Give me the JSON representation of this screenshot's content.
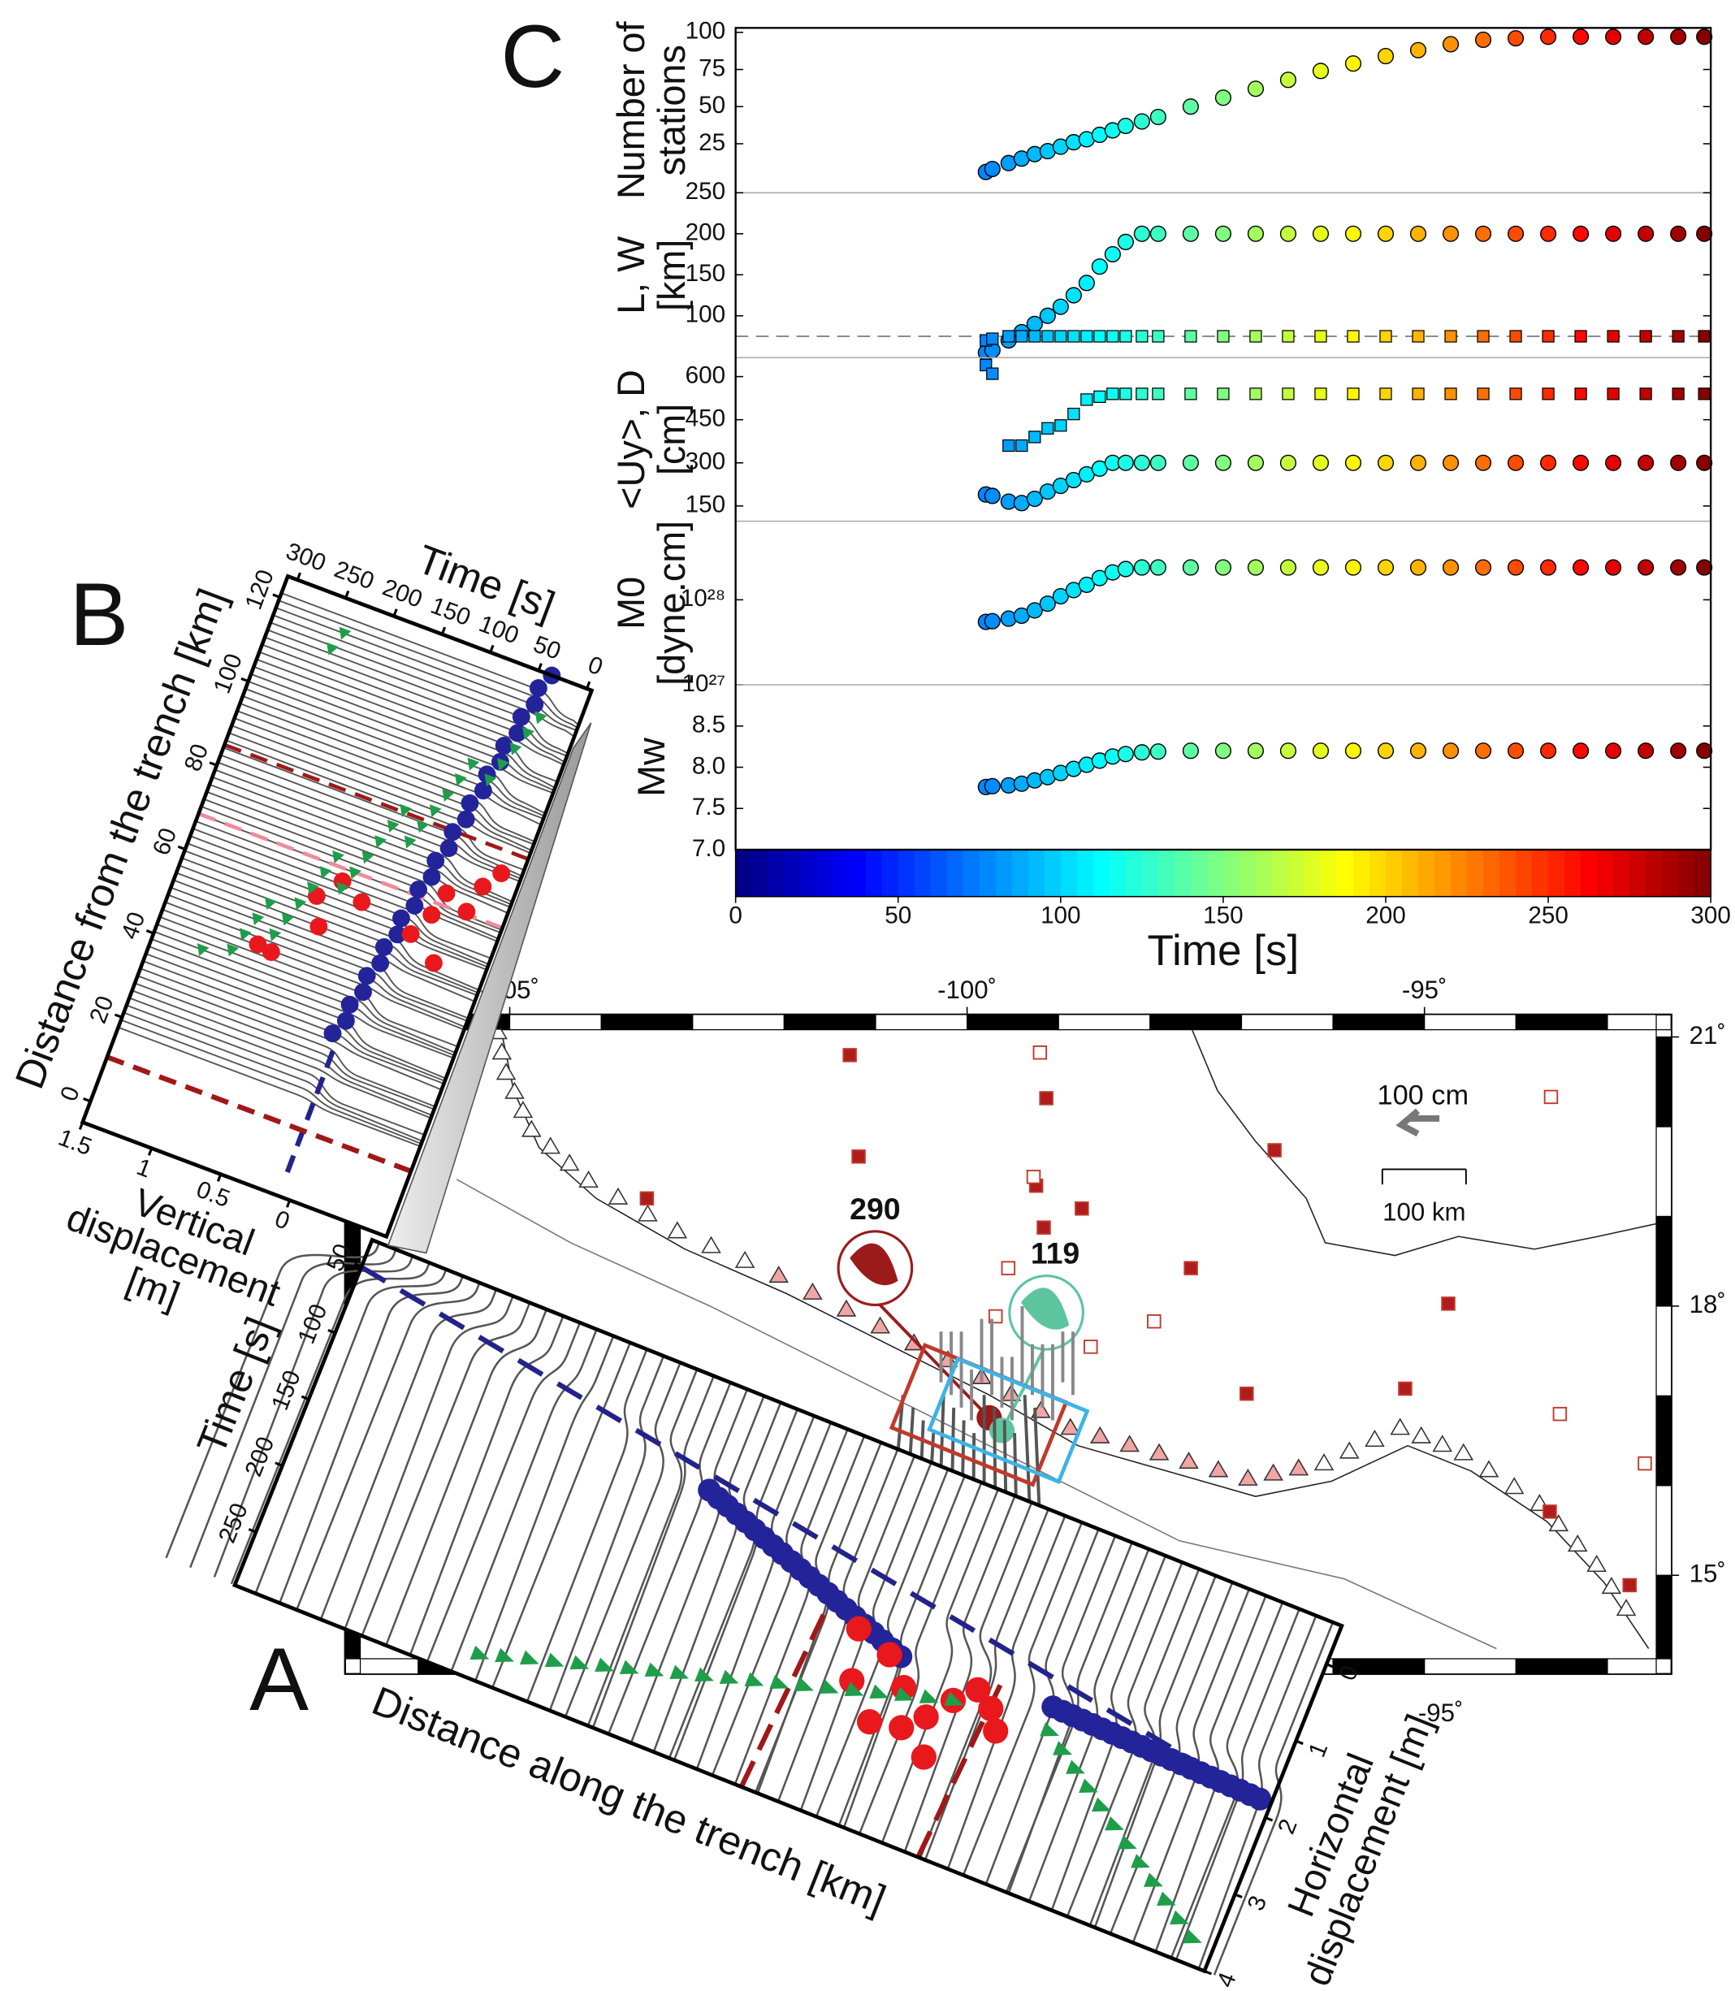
{
  "panel_labels": [
    "A",
    "B",
    "C"
  ],
  "chart_data": [
    {
      "type": "scatter",
      "ylabel": [
        "Number of",
        "stations"
      ],
      "xlim": [
        0,
        300
      ],
      "ylim": [
        -8,
        103
      ],
      "yticks": [
        25,
        50,
        75,
        100
      ],
      "series": [
        {
          "marker": "circle",
          "x": [
            77,
            79,
            84,
            88,
            92,
            96,
            100,
            104,
            108,
            112,
            116,
            120,
            125,
            130,
            140,
            150,
            160,
            170,
            180,
            190,
            200,
            210,
            220,
            230,
            240,
            250,
            260,
            270,
            280,
            290,
            298
          ],
          "values": [
            6,
            8,
            12,
            15,
            18,
            20,
            23,
            26,
            28,
            31,
            34,
            37,
            40,
            43,
            50,
            56,
            62,
            68,
            74,
            79,
            84,
            88,
            92,
            95,
            96,
            97,
            97,
            97,
            97,
            97,
            97
          ]
        }
      ]
    },
    {
      "type": "scatter",
      "ylabel": [
        "L, W",
        "[km]"
      ],
      "xlim": [
        0,
        300
      ],
      "ylim": [
        49,
        250
      ],
      "yticks": [
        100,
        150,
        200,
        250
      ],
      "hline": 75,
      "series": [
        {
          "marker": "circle",
          "x": [
            77,
            79,
            84,
            88,
            92,
            96,
            100,
            104,
            108,
            112,
            116,
            120,
            125,
            130,
            140,
            150,
            160,
            170,
            180,
            190,
            200,
            210,
            220,
            230,
            240,
            250,
            260,
            270,
            280,
            290,
            298
          ],
          "values": [
            55,
            58,
            70,
            80,
            90,
            100,
            111,
            125,
            140,
            160,
            175,
            190,
            200,
            200,
            200,
            200,
            200,
            200,
            200,
            200,
            200,
            200,
            200,
            200,
            200,
            200,
            200,
            200,
            200,
            200,
            200
          ]
        },
        {
          "marker": "square",
          "x": [
            77,
            79,
            84,
            88,
            92,
            96,
            100,
            104,
            108,
            112,
            116,
            120,
            125,
            130,
            140,
            150,
            160,
            170,
            180,
            190,
            200,
            210,
            220,
            230,
            240,
            250,
            260,
            270,
            280,
            290,
            298
          ],
          "values": [
            70,
            72,
            75,
            75,
            75,
            75,
            75,
            75,
            75,
            75,
            75,
            75,
            75,
            75,
            75,
            75,
            75,
            75,
            75,
            75,
            75,
            75,
            75,
            75,
            75,
            75,
            75,
            75,
            75,
            75,
            75
          ]
        }
      ]
    },
    {
      "type": "scatter",
      "ylabel": [
        "<Uy>, D",
        "[cm]"
      ],
      "xlim": [
        0,
        300
      ],
      "ylim": [
        97,
        666
      ],
      "yticks": [
        150,
        300,
        450,
        600
      ],
      "series": [
        {
          "marker": "square",
          "x": [
            77,
            79,
            84,
            88,
            92,
            96,
            100,
            104,
            108,
            112,
            116,
            120,
            125,
            130,
            140,
            150,
            160,
            170,
            180,
            190,
            200,
            210,
            220,
            230,
            240,
            250,
            260,
            270,
            280,
            290,
            298
          ],
          "values": [
            640,
            610,
            360,
            360,
            390,
            420,
            430,
            470,
            520,
            530,
            540,
            540,
            540,
            540,
            540,
            540,
            540,
            540,
            540,
            540,
            540,
            540,
            540,
            540,
            540,
            540,
            540,
            540,
            540,
            540,
            540
          ]
        },
        {
          "marker": "circle",
          "x": [
            77,
            79,
            84,
            88,
            92,
            96,
            100,
            104,
            108,
            112,
            116,
            120,
            125,
            130,
            140,
            150,
            160,
            170,
            180,
            190,
            200,
            210,
            220,
            230,
            240,
            250,
            260,
            270,
            280,
            290,
            298
          ],
          "values": [
            190,
            185,
            165,
            160,
            175,
            200,
            220,
            240,
            260,
            280,
            300,
            300,
            300,
            300,
            300,
            300,
            300,
            300,
            300,
            300,
            300,
            300,
            300,
            300,
            300,
            300,
            300,
            300,
            300,
            300,
            300
          ]
        }
      ]
    },
    {
      "type": "scatter",
      "ylabel": [
        "M0",
        "[dyne.cm]"
      ],
      "xlim": [
        0,
        300
      ],
      "ylim": [
        1e+27,
        8.4e+28
      ],
      "log_scale": true,
      "yticks": [
        {
          "value": 1e+27,
          "label": "10²⁷"
        },
        {
          "value": 1e+28,
          "label": "10²⁸"
        }
      ],
      "series": [
        {
          "marker": "circle",
          "x": [
            77,
            79,
            84,
            88,
            92,
            96,
            100,
            104,
            108,
            112,
            116,
            120,
            125,
            130,
            140,
            150,
            160,
            170,
            180,
            190,
            200,
            210,
            220,
            230,
            240,
            250,
            260,
            270,
            280,
            290,
            298
          ],
          "values": [
            5.5e+27,
            5.6e+27,
            6e+27,
            6.5e+27,
            7.5e+27,
            9e+27,
            1.1e+28,
            1.3e+28,
            1.5e+28,
            1.8e+28,
            2.1e+28,
            2.3e+28,
            2.4e+28,
            2.4e+28,
            2.4e+28,
            2.4e+28,
            2.4e+28,
            2.4e+28,
            2.4e+28,
            2.4e+28,
            2.4e+28,
            2.4e+28,
            2.4e+28,
            2.4e+28,
            2.4e+28,
            2.4e+28,
            2.4e+28,
            2.4e+28,
            2.4e+28,
            2.4e+28,
            2.4e+28
          ]
        }
      ]
    },
    {
      "type": "scatter",
      "ylabel": [
        "Mw"
      ],
      "xlim": [
        0,
        300
      ],
      "ylim": [
        7,
        9
      ],
      "yticks": [
        {
          "value": 7,
          "label": "7.0"
        },
        7.5,
        {
          "value": 8,
          "label": "8.0"
        },
        8.5
      ],
      "series": [
        {
          "marker": "circle",
          "x": [
            77,
            79,
            84,
            88,
            92,
            96,
            100,
            104,
            108,
            112,
            116,
            120,
            125,
            130,
            140,
            150,
            160,
            170,
            180,
            190,
            200,
            210,
            220,
            230,
            240,
            250,
            260,
            270,
            280,
            290,
            298
          ],
          "values": [
            7.76,
            7.77,
            7.78,
            7.8,
            7.84,
            7.88,
            7.93,
            7.98,
            8.03,
            8.08,
            8.13,
            8.16,
            8.18,
            8.19,
            8.2,
            8.2,
            8.2,
            8.2,
            8.2,
            8.2,
            8.2,
            8.2,
            8.2,
            8.2,
            8.2,
            8.2,
            8.2,
            8.2,
            8.2,
            8.2,
            8.2
          ]
        }
      ]
    },
    {
      "type": "colorbar",
      "colormap": "jet",
      "xlim": [
        0,
        300
      ],
      "xticks": [
        0,
        50,
        100,
        150,
        200,
        250,
        300
      ],
      "xlabel": "Time [s]"
    }
  ],
  "map": {
    "xlim": [
      -106.8,
      -92.3
    ],
    "ylim": [
      13.9,
      21.25
    ],
    "xticks": [
      {
        "value": -105,
        "label": "-105˚"
      },
      {
        "value": -100,
        "label": "-100˚"
      },
      {
        "value": -95,
        "label": "-95˚"
      }
    ],
    "yticks": [
      {
        "value": 15,
        "label": "15˚"
      },
      {
        "value": 18,
        "label": "18˚"
      },
      {
        "value": 21,
        "label": "21˚"
      }
    ],
    "arrow_label": "100 cm",
    "scale_label": "100 km",
    "events": [
      {
        "label": "290",
        "color": "#9b1b1b"
      },
      {
        "label": "119",
        "color": "#5cc5a0"
      }
    ]
  },
  "profile_a": {
    "time_label": "Time [s]",
    "time_lim": [
      30,
      290
    ],
    "time_ticks": [
      50,
      100,
      150,
      200,
      250
    ],
    "distance_label": "Distance along the trench [km]",
    "disp_label": [
      "Horizontal",
      "displacement [m]"
    ],
    "disp_lim": [
      -0.5,
      4
    ],
    "disp_ticks": [
      0,
      1,
      2,
      3,
      4
    ]
  },
  "profile_b": {
    "distance_label": "Distance from the trench [km]",
    "distance_lim": [
      -5,
      125
    ],
    "distance_ticks": [
      0,
      20,
      40,
      60,
      80,
      100,
      120
    ],
    "time_label": "Time [s]",
    "time_lim": [
      310,
      -5
    ],
    "time_ticks": [
      0,
      50,
      100,
      150,
      200,
      250,
      300
    ],
    "disp_label": [
      "Vertical",
      "displacement",
      "[m]"
    ],
    "disp_lim": [
      1.5,
      -0.7
    ],
    "disp_ticks": [
      0,
      0.5,
      1,
      1.5
    ]
  }
}
